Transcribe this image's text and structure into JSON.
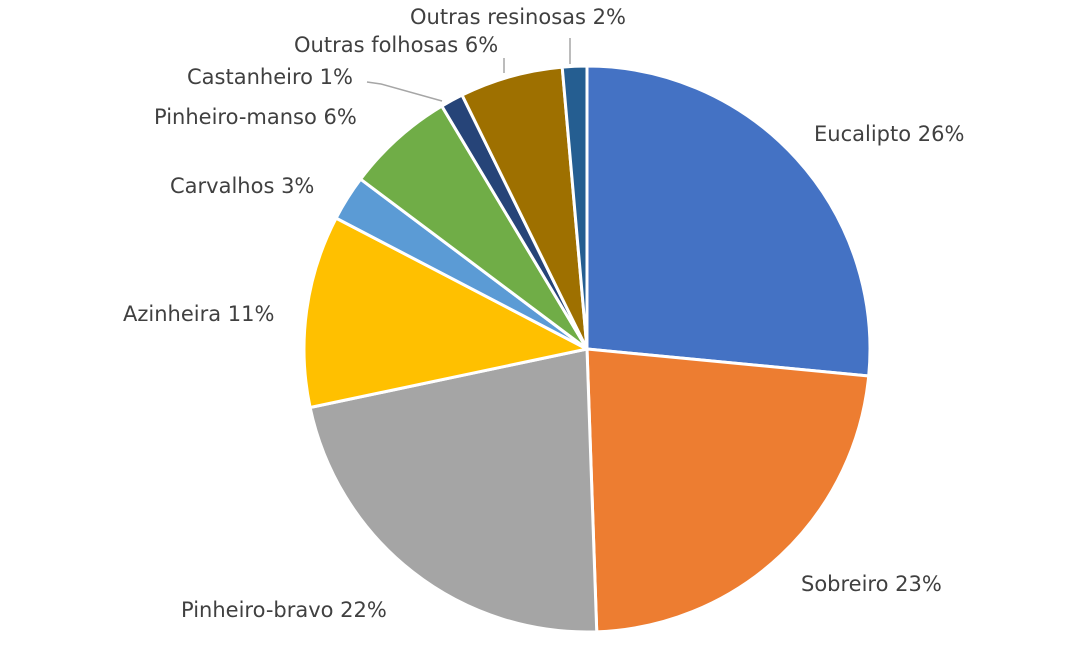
{
  "chart_data": {
    "type": "pie",
    "title": "",
    "categories": [
      "Eucalipto",
      "Sobreiro",
      "Pinheiro-bravo",
      "Azinheira",
      "Carvalhos",
      "Pinheiro-manso",
      "Castanheiro",
      "Outras folhosas",
      "Outras resinosas"
    ],
    "values": [
      26,
      23,
      22,
      11,
      3,
      6,
      1,
      6,
      2
    ],
    "unit": "%",
    "colors": [
      "#4472C4",
      "#ED7D31",
      "#A5A5A5",
      "#FFC000",
      "#5B9BD5",
      "#70AD47",
      "#264478",
      "#9E7000",
      "#255E91"
    ],
    "labels": [
      "Eucalipto 26%",
      "Sobreiro 23%",
      "Pinheiro-bravo 22%",
      "Azinheira 11%",
      "Carvalhos 3%",
      "Pinheiro-manso 6%",
      "Castanheiro 1%",
      "Outras folhosas 6%",
      "Outras resinosas 2%"
    ],
    "start_angle_deg": 0,
    "direction": "clockwise",
    "legend": "none",
    "data_labels": "outside with leader lines"
  }
}
